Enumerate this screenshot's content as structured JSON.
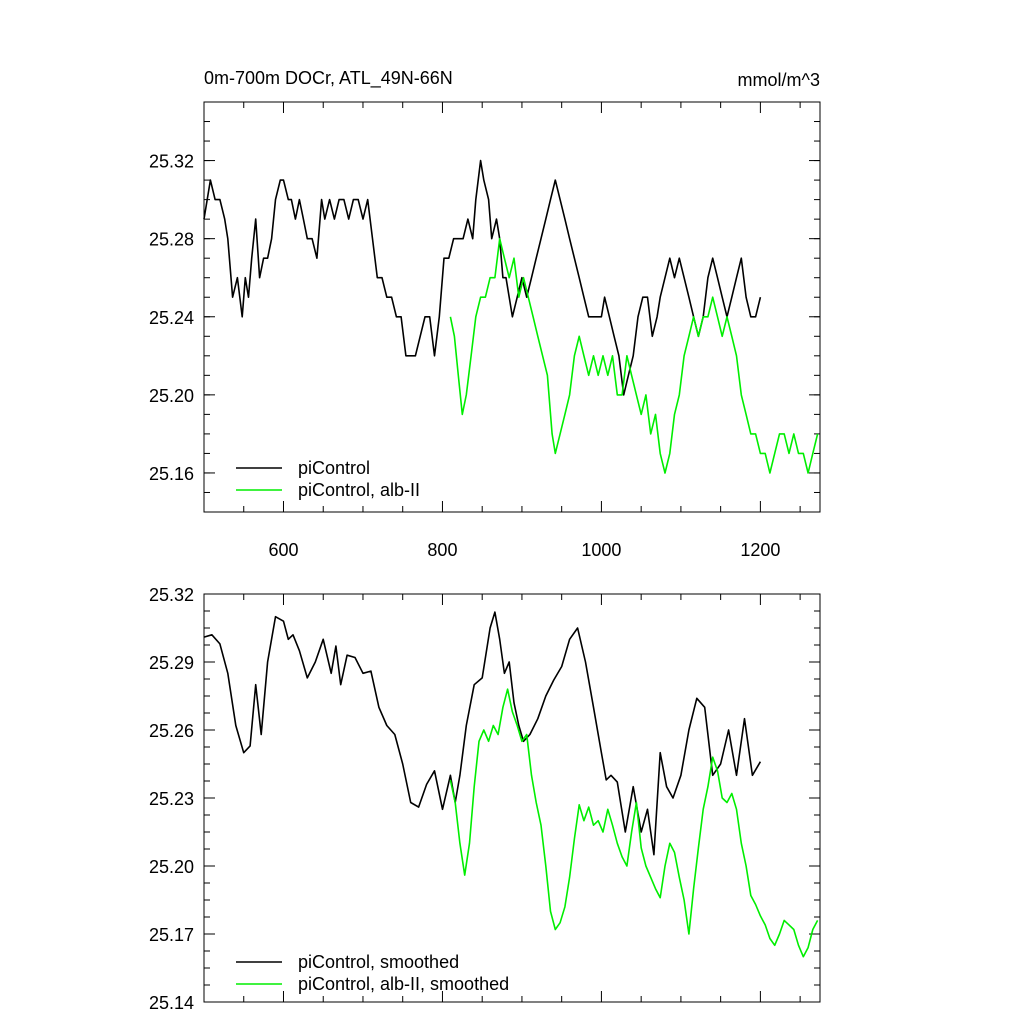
{
  "chart_data": [
    {
      "type": "line",
      "title": "0m-700m DOCr, ATL_49N-66N",
      "units": "mmol/m^3",
      "xlim": [
        500,
        1275
      ],
      "ylim": [
        25.14,
        25.35
      ],
      "xticks": [
        600,
        800,
        1000,
        1200
      ],
      "yticks": [
        25.16,
        25.2,
        25.24,
        25.28,
        25.32
      ],
      "ytick_labels": [
        "25.16",
        "25.20",
        "25.24",
        "25.28",
        "25.32"
      ],
      "xtick_labels": [
        "600",
        "800",
        "1000",
        "1200"
      ],
      "legend_position": "bottom-left",
      "series": [
        {
          "name": "piControl",
          "color": "#000000",
          "x": [
            500,
            508,
            514,
            520,
            526,
            530,
            536,
            542,
            548,
            552,
            556,
            560,
            565,
            570,
            575,
            580,
            585,
            590,
            596,
            600,
            606,
            610,
            615,
            620,
            625,
            630,
            636,
            642,
            648,
            652,
            658,
            664,
            670,
            676,
            682,
            688,
            694,
            700,
            706,
            712,
            718,
            724,
            730,
            736,
            742,
            748,
            754,
            760,
            766,
            772,
            778,
            784,
            790,
            796,
            802,
            808,
            814,
            820,
            826,
            832,
            838,
            842,
            848,
            852,
            858,
            862,
            868,
            872,
            876,
            880,
            884,
            888,
            894,
            900,
            906,
            912,
            918,
            924,
            930,
            936,
            942,
            948,
            954,
            960,
            966,
            972,
            978,
            984,
            990,
            996,
            1000,
            1004,
            1010,
            1016,
            1022,
            1028,
            1034,
            1040,
            1046,
            1052,
            1058,
            1064,
            1070,
            1074,
            1080,
            1086,
            1092,
            1098,
            1104,
            1110,
            1116,
            1122,
            1128,
            1134,
            1140,
            1146,
            1152,
            1158,
            1164,
            1170,
            1176,
            1182,
            1188,
            1194,
            1200
          ],
          "y": [
            25.29,
            25.31,
            25.3,
            25.3,
            25.29,
            25.28,
            25.25,
            25.26,
            25.24,
            25.26,
            25.25,
            25.27,
            25.29,
            25.26,
            25.27,
            25.27,
            25.28,
            25.3,
            25.31,
            25.31,
            25.3,
            25.3,
            25.29,
            25.3,
            25.29,
            25.28,
            25.28,
            25.27,
            25.3,
            25.29,
            25.3,
            25.29,
            25.3,
            25.3,
            25.29,
            25.3,
            25.3,
            25.29,
            25.3,
            25.28,
            25.26,
            25.26,
            25.25,
            25.25,
            25.24,
            25.24,
            25.22,
            25.22,
            25.22,
            25.23,
            25.24,
            25.24,
            25.22,
            25.24,
            25.27,
            25.27,
            25.28,
            25.28,
            25.28,
            25.29,
            25.28,
            25.3,
            25.32,
            25.31,
            25.3,
            25.28,
            25.29,
            25.28,
            25.26,
            25.26,
            25.25,
            25.24,
            25.25,
            25.26,
            25.25,
            25.26,
            25.27,
            25.28,
            25.29,
            25.3,
            25.31,
            25.3,
            25.29,
            25.28,
            25.27,
            25.26,
            25.25,
            25.24,
            25.24,
            25.24,
            25.24,
            25.25,
            25.24,
            25.23,
            25.22,
            25.2,
            25.21,
            25.22,
            25.24,
            25.25,
            25.25,
            25.23,
            25.24,
            25.25,
            25.26,
            25.27,
            25.26,
            25.27,
            25.26,
            25.25,
            25.24,
            25.23,
            25.24,
            25.26,
            25.27,
            25.26,
            25.25,
            25.24,
            25.25,
            25.26,
            25.27,
            25.25,
            25.24,
            25.24,
            25.25
          ],
          "comment_skip": true
        },
        {
          "name": "piControl, alb-II",
          "color": "#00ee00",
          "x": [
            810,
            815,
            820,
            825,
            830,
            836,
            842,
            848,
            854,
            860,
            866,
            872,
            878,
            884,
            890,
            896,
            902,
            908,
            914,
            920,
            926,
            932,
            938,
            942,
            948,
            954,
            960,
            966,
            972,
            978,
            984,
            990,
            996,
            1002,
            1008,
            1014,
            1020,
            1026,
            1032,
            1038,
            1044,
            1050,
            1056,
            1062,
            1068,
            1074,
            1080,
            1086,
            1092,
            1098,
            1104,
            1110,
            1116,
            1122,
            1128,
            1134,
            1140,
            1146,
            1152,
            1158,
            1164,
            1170,
            1176,
            1182,
            1188,
            1194,
            1200,
            1206,
            1212,
            1218,
            1224,
            1230,
            1236,
            1242,
            1248,
            1254,
            1260,
            1266,
            1272
          ],
          "y": [
            25.24,
            25.23,
            25.21,
            25.19,
            25.2,
            25.22,
            25.24,
            25.25,
            25.25,
            25.26,
            25.26,
            25.28,
            25.27,
            25.26,
            25.27,
            25.25,
            25.26,
            25.25,
            25.24,
            25.23,
            25.22,
            25.21,
            25.18,
            25.17,
            25.18,
            25.19,
            25.2,
            25.22,
            25.23,
            25.22,
            25.21,
            25.22,
            25.21,
            25.22,
            25.21,
            25.22,
            25.2,
            25.2,
            25.22,
            25.21,
            25.2,
            25.19,
            25.2,
            25.18,
            25.19,
            25.17,
            25.16,
            25.17,
            25.19,
            25.2,
            25.22,
            25.23,
            25.24,
            25.23,
            25.24,
            25.24,
            25.25,
            25.24,
            25.23,
            25.24,
            25.23,
            25.22,
            25.2,
            25.19,
            25.18,
            25.18,
            25.17,
            25.17,
            25.16,
            25.17,
            25.18,
            25.18,
            25.17,
            25.18,
            25.17,
            25.17,
            25.16,
            25.17,
            25.18
          ]
        }
      ]
    },
    {
      "type": "line",
      "title": "",
      "units": "",
      "xlim": [
        500,
        1275
      ],
      "ylim": [
        25.14,
        25.32
      ],
      "xticks": [
        600,
        800,
        1000,
        1200
      ],
      "yticks": [
        25.14,
        25.17,
        25.2,
        25.23,
        25.26,
        25.29,
        25.32
      ],
      "ytick_labels": [
        "25.14",
        "25.17",
        "25.20",
        "25.23",
        "25.26",
        "25.29",
        "25.32"
      ],
      "xtick_labels": [],
      "legend_position": "bottom-left",
      "series": [
        {
          "name": "piControl, smoothed",
          "color": "#000000",
          "x": [
            500,
            510,
            520,
            530,
            540,
            550,
            558,
            565,
            572,
            580,
            590,
            600,
            606,
            612,
            620,
            630,
            640,
            650,
            660,
            666,
            672,
            680,
            690,
            700,
            710,
            720,
            730,
            740,
            750,
            760,
            770,
            780,
            790,
            800,
            810,
            816,
            822,
            830,
            840,
            850,
            860,
            866,
            872,
            878,
            884,
            890,
            896,
            902,
            910,
            920,
            930,
            940,
            950,
            960,
            970,
            980,
            990,
            1000,
            1006,
            1012,
            1020,
            1030,
            1040,
            1050,
            1058,
            1066,
            1074,
            1082,
            1090,
            1100,
            1110,
            1120,
            1130,
            1140,
            1150,
            1160,
            1170,
            1180,
            1190,
            1200
          ],
          "y": [
            25.301,
            25.302,
            25.298,
            25.285,
            25.262,
            25.25,
            25.253,
            25.28,
            25.258,
            25.29,
            25.31,
            25.308,
            25.3,
            25.302,
            25.295,
            25.283,
            25.29,
            25.3,
            25.285,
            25.297,
            25.28,
            25.293,
            25.292,
            25.285,
            25.286,
            25.27,
            25.262,
            25.258,
            25.245,
            25.228,
            25.226,
            25.236,
            25.242,
            25.225,
            25.24,
            25.228,
            25.24,
            25.262,
            25.28,
            25.283,
            25.305,
            25.312,
            25.3,
            25.285,
            25.29,
            25.272,
            25.262,
            25.255,
            25.258,
            25.265,
            25.275,
            25.282,
            25.288,
            25.3,
            25.305,
            25.29,
            25.27,
            25.25,
            25.238,
            25.24,
            25.237,
            25.215,
            25.235,
            25.215,
            25.225,
            25.205,
            25.25,
            25.235,
            25.23,
            25.24,
            25.26,
            25.274,
            25.27,
            25.24,
            25.245,
            25.26,
            25.24,
            25.265,
            25.24,
            25.246
          ]
        },
        {
          "name": "piControl, alb-II, smoothed",
          "color": "#00ee00",
          "x": [
            810,
            816,
            822,
            828,
            834,
            840,
            846,
            852,
            858,
            864,
            870,
            876,
            882,
            888,
            894,
            900,
            906,
            912,
            918,
            924,
            930,
            936,
            942,
            948,
            954,
            960,
            966,
            972,
            978,
            984,
            990,
            996,
            1002,
            1008,
            1014,
            1020,
            1026,
            1032,
            1038,
            1044,
            1050,
            1056,
            1062,
            1068,
            1074,
            1080,
            1086,
            1092,
            1098,
            1104,
            1110,
            1116,
            1122,
            1128,
            1134,
            1140,
            1146,
            1152,
            1158,
            1164,
            1170,
            1176,
            1182,
            1188,
            1194,
            1200,
            1206,
            1212,
            1218,
            1224,
            1230,
            1236,
            1242,
            1248,
            1254,
            1260,
            1266,
            1272
          ],
          "y": [
            25.238,
            25.228,
            25.21,
            25.196,
            25.21,
            25.235,
            25.255,
            25.26,
            25.255,
            25.262,
            25.258,
            25.27,
            25.278,
            25.268,
            25.262,
            25.255,
            25.258,
            25.24,
            25.228,
            25.218,
            25.2,
            25.18,
            25.172,
            25.175,
            25.182,
            25.195,
            25.212,
            25.227,
            25.22,
            25.226,
            25.218,
            25.22,
            25.215,
            25.225,
            25.218,
            25.21,
            25.204,
            25.2,
            25.215,
            25.228,
            25.208,
            25.2,
            25.195,
            25.19,
            25.186,
            25.2,
            25.21,
            25.206,
            25.195,
            25.185,
            25.17,
            25.19,
            25.208,
            25.225,
            25.235,
            25.248,
            25.242,
            25.23,
            25.228,
            25.232,
            25.225,
            25.21,
            25.2,
            25.187,
            25.183,
            25.178,
            25.174,
            25.168,
            25.165,
            25.17,
            25.176,
            25.174,
            25.172,
            25.165,
            25.16,
            25.164,
            25.172,
            25.176
          ]
        }
      ]
    }
  ]
}
